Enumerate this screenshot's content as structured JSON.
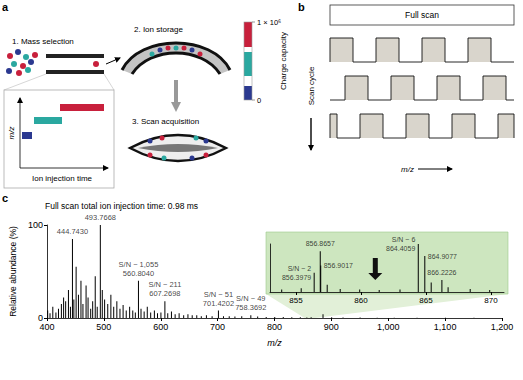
{
  "panels": {
    "a": {
      "label": "a",
      "steps": [
        "1. Mass selection",
        "2. Ion storage",
        "3. Scan acquisition"
      ],
      "inset": {
        "y_label": "m/z",
        "x_label": "Ion injection time"
      },
      "colorbar": {
        "label": "Charge capacity",
        "range": [
          0,
          1000000
        ],
        "ticks": [
          {
            "value": 0,
            "label": "0"
          },
          {
            "value": 1000000,
            "label": "1 × 10⁶"
          }
        ],
        "colors": [
          "#2b3990",
          "#2aa8a0",
          "#c8203c"
        ]
      }
    },
    "b": {
      "label": "b",
      "full_scan": "Full scan",
      "y_label": "Scan cycle",
      "x_label": "m/z"
    },
    "c": {
      "label": "c"
    }
  },
  "chart_data": [
    {
      "type": "bar",
      "title": "Full scan total ion injection time: 0.98 ms",
      "x_label": "m/z",
      "y_label": "Relative abundance (%)",
      "xlim": [
        400,
        1200
      ],
      "xticks": [
        400,
        500,
        600,
        700,
        800,
        900,
        {
          "value": 1000,
          "label": "1,000"
        },
        {
          "value": 1100,
          "label": "1,100"
        },
        {
          "value": 1200,
          "label": "1,200"
        }
      ],
      "ylim": [
        0,
        100
      ],
      "yticks": [
        0,
        100
      ],
      "color": "#000000",
      "x": [
        401.2,
        405.3,
        410.2,
        415.7,
        420.2,
        425.3,
        429.2,
        432.8,
        437.7,
        441.2,
        444.743,
        447.2,
        451.2,
        455.3,
        459.7,
        463.2,
        468.7,
        472.2,
        476.8,
        480.3,
        484.8,
        488.3,
        493.7668,
        497.2,
        501.3,
        506.8,
        512.3,
        517.3,
        522.8,
        528.3,
        533.8,
        539.3,
        545.3,
        550.8,
        555.3,
        560.804,
        565.3,
        570.8,
        576.3,
        582.3,
        588.8,
        594.3,
        600.3,
        607.2698,
        612.3,
        618.8,
        625.3,
        632.3,
        640.3,
        647.8,
        655.3,
        663.3,
        671.3,
        680.3,
        690.3,
        701.4202,
        710.3,
        720.4,
        730.4,
        742.4,
        758.3692,
        770.4,
        785.4,
        800.4,
        815.4,
        830.4,
        845.4,
        856.8657,
        864.4059,
        885.3,
        900.5,
        920.5,
        950.5,
        980.5,
        1010.5,
        1050.6,
        1100.6,
        1150.7
      ],
      "values": [
        8,
        5,
        12,
        6,
        10,
        15,
        22,
        18,
        30,
        12,
        85,
        20,
        55,
        25,
        40,
        15,
        35,
        22,
        10,
        18,
        45,
        12,
        100,
        30,
        20,
        15,
        25,
        12,
        18,
        10,
        14,
        8,
        12,
        8,
        6,
        40,
        10,
        7,
        12,
        6,
        8,
        5,
        6,
        18,
        5,
        7,
        4,
        5,
        3,
        4,
        3,
        3,
        2,
        3,
        2,
        8,
        2,
        2,
        1.5,
        2,
        3,
        1.5,
        1,
        1.2,
        1,
        0.8,
        0.8,
        0.6,
        0.8,
        4,
        0.8,
        0.6,
        0.5,
        0.4,
        0.4,
        0.3,
        0.3,
        0.3
      ],
      "annotations": [
        {
          "x": 444.743,
          "y": 85,
          "label": "444.7430"
        },
        {
          "x": 493.7668,
          "y": 100,
          "label": "493.7668"
        },
        {
          "x": 560.804,
          "y": 40,
          "label": "560.8040",
          "note": "S/N ~ 1,055"
        },
        {
          "x": 607.2698,
          "y": 18,
          "label": "607.2698",
          "note": "S/N ~ 211"
        },
        {
          "x": 701.4202,
          "y": 8,
          "label": "701.4202",
          "note": "S/N ~ 51"
        },
        {
          "x": 758.3692,
          "y": 3,
          "label": "758.3692",
          "note": "S/N ~ 49"
        }
      ]
    },
    {
      "type": "bar",
      "xlim": [
        853,
        871
      ],
      "xticks": [
        855,
        860,
        865,
        870
      ],
      "ylim": [
        0,
        100
      ],
      "tick_labels": "x",
      "color": "#000000",
      "x": [
        853.9,
        855.4,
        856.3979,
        856.8657,
        856.9017,
        857.4,
        858.4,
        859.9,
        861.4,
        863.0,
        864.4059,
        864.9077,
        865.4,
        866.2226,
        866.7,
        868.4,
        869.9
      ],
      "values": [
        5,
        8,
        40,
        85,
        55,
        15,
        6,
        5,
        4,
        5,
        100,
        75,
        20,
        25,
        10,
        6,
        4
      ],
      "annotations": [
        {
          "x": 856.3979,
          "y": 40,
          "label": "856.3979",
          "note": "S/N ~ 2"
        },
        {
          "x": 856.8657,
          "y": 85,
          "label": "856.8657"
        },
        {
          "x": 856.9017,
          "y": 55,
          "label": "856.9017"
        },
        {
          "x": 864.4059,
          "y": 100,
          "label": "864.4059",
          "note": "S/N ~ 6"
        },
        {
          "x": 864.9077,
          "y": 75,
          "label": "864.9077"
        },
        {
          "x": 866.2226,
          "y": 25,
          "label": "866.2226"
        }
      ]
    }
  ]
}
